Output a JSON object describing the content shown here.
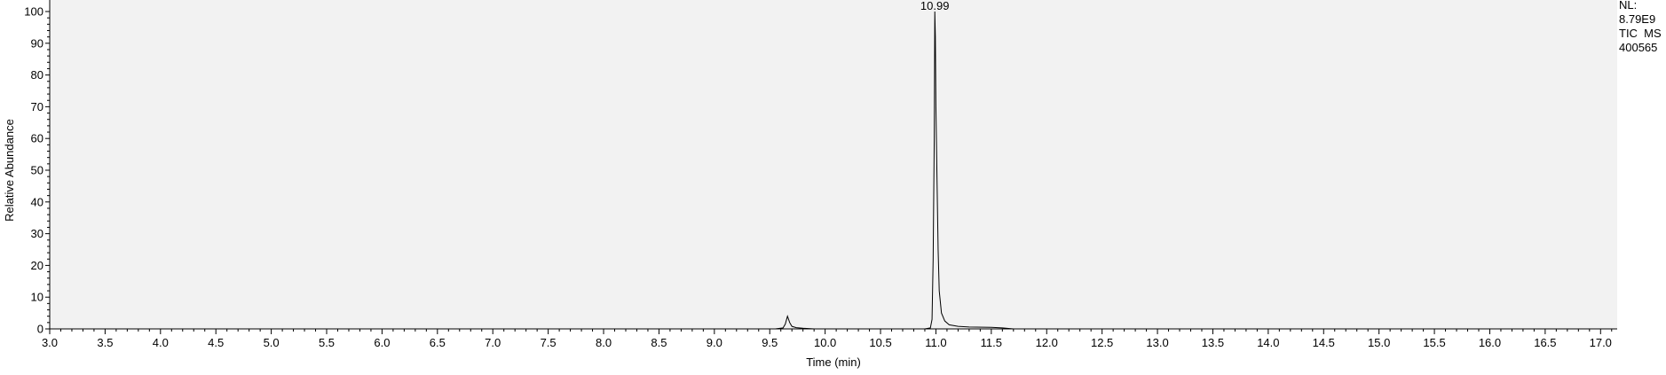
{
  "chart_data": {
    "type": "line",
    "xlabel": "Time (min)",
    "ylabel": "Relative Abundance",
    "xlim": [
      3.0,
      17.15
    ],
    "ylim": [
      0,
      100
    ],
    "x_ticks": [
      "3.0",
      "3.5",
      "4.0",
      "4.5",
      "5.0",
      "5.5",
      "6.0",
      "6.5",
      "7.0",
      "7.5",
      "8.0",
      "8.5",
      "9.0",
      "9.5",
      "10.0",
      "10.5",
      "11.0",
      "11.5",
      "12.0",
      "12.5",
      "13.0",
      "13.5",
      "14.0",
      "14.5",
      "15.0",
      "15.5",
      "16.0",
      "16.5",
      "17.0"
    ],
    "y_ticks": [
      "0",
      "10",
      "20",
      "30",
      "40",
      "50",
      "60",
      "70",
      "80",
      "90",
      "100"
    ],
    "peak_label": "10.99",
    "info_lines": [
      "NL:",
      "8.79E9",
      "TIC  MS",
      "400565"
    ],
    "background_color": "#f2f2f2",
    "line_color": "#000000",
    "series": [
      {
        "x": [
          3.0,
          9.55,
          9.62,
          9.64,
          9.66,
          9.68,
          9.7,
          9.74,
          9.8,
          9.9,
          10.5,
          10.9,
          10.95,
          10.965,
          10.975,
          10.985,
          10.99,
          10.995,
          11.0,
          11.01,
          11.02,
          11.03,
          11.05,
          11.08,
          11.12,
          11.2,
          11.3,
          11.5,
          11.6,
          11.7,
          12.0,
          17.15
        ],
        "y": [
          0,
          0,
          0.3,
          1.5,
          4.0,
          2.0,
          0.8,
          0.4,
          0.2,
          0,
          0,
          0,
          0.3,
          3.0,
          22.0,
          60.0,
          100,
          92.0,
          70.0,
          47.0,
          25.0,
          12.0,
          5.0,
          2.5,
          1.3,
          0.8,
          0.6,
          0.5,
          0.3,
          0,
          0,
          0
        ]
      }
    ]
  }
}
